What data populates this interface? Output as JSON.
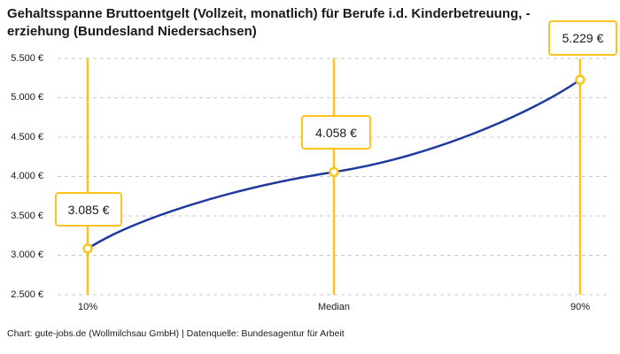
{
  "header": {
    "title_line1": "Gehaltsspanne Bruttoentgelt (Vollzeit, monatlich) für Berufe i.d. Kinderbetreuung, -",
    "title_line2": "erziehung (Bundesland Niedersachsen)"
  },
  "chart_data": {
    "type": "line",
    "title": "Gehaltsspanne Bruttoentgelt (Vollzeit, monatlich) für Berufe i.d. Kinderbetreuung, -erziehung (Bundesland Niedersachsen)",
    "categories": [
      "10%",
      "Median",
      "90%"
    ],
    "values": [
      3085,
      4058,
      5229
    ],
    "point_labels": [
      "3.085 €",
      "4.058 €",
      "5.229 €"
    ],
    "y_tick_labels": [
      "5.500 €",
      "5.000 €",
      "4.500 €",
      "4.000 €",
      "3.500 €",
      "3.000 €",
      "2.500 €"
    ],
    "y_tick_values": [
      5500,
      5000,
      4500,
      4000,
      3500,
      3000,
      2500
    ],
    "ylim": [
      2500,
      5500
    ],
    "xlabel": "",
    "ylabel": "",
    "grid": "horizontal-dashed",
    "legend": "none",
    "colors": {
      "line": "#1e3a9f",
      "marker_stroke": "#fac31e",
      "marker_fill": "#ffffff",
      "percentile_line": "#fac31e",
      "label_box_border": "#fac31e",
      "gridline": "#c9c9c9",
      "text": "#1a1a1a"
    }
  },
  "footer": {
    "credit": "Chart: gute-jobs.de (Wollmilchsau GmbH) | Datenquelle: Bundesagentur für Arbeit"
  }
}
